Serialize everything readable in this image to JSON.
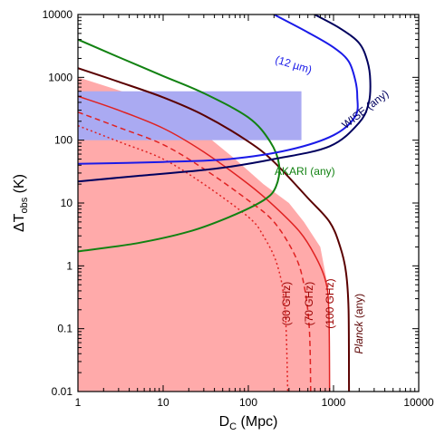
{
  "chart_data": {
    "type": "line",
    "xlabel": {
      "main": "D",
      "sub": "C",
      "rest": " (Mpc)"
    },
    "ylabel": {
      "main": "ΔT",
      "sub": "obs",
      "rest": " (K)"
    },
    "xscale": "log",
    "yscale": "log",
    "xlim": [
      1,
      10000
    ],
    "ylim": [
      0.01,
      10000
    ],
    "x_ticks": [
      {
        "value": 1,
        "label": "1"
      },
      {
        "value": 10,
        "label": "10"
      },
      {
        "value": 100,
        "label": "100"
      },
      {
        "value": 1000,
        "label": "1000"
      },
      {
        "value": 10000,
        "label": "10000"
      }
    ],
    "y_ticks": [
      {
        "value": 0.01,
        "label": "0.01"
      },
      {
        "value": 0.1,
        "label": "0.1"
      },
      {
        "value": 1,
        "label": "1"
      },
      {
        "value": 10,
        "label": "10"
      },
      {
        "value": 100,
        "label": "100"
      },
      {
        "value": 1000,
        "label": "1000"
      },
      {
        "value": 10000,
        "label": "10000"
      }
    ],
    "shaded_regions": [
      {
        "color": "#ffaaaa",
        "points": [
          [
            1,
            1000
          ],
          [
            1,
            0.01
          ],
          [
            900,
            0.01
          ],
          [
            890,
            0.1
          ],
          [
            850,
            0.5
          ],
          [
            700,
            2
          ],
          [
            450,
            5
          ],
          [
            300,
            10
          ],
          [
            150,
            20
          ],
          [
            70,
            50
          ],
          [
            20,
            200
          ],
          [
            10,
            300
          ],
          [
            5,
            500
          ]
        ]
      },
      {
        "color": "#aaaaf2",
        "band": {
          "x": [
            1,
            420
          ],
          "y": [
            100,
            600
          ]
        }
      }
    ],
    "series": [
      {
        "color": "#5a0000",
        "width": 2,
        "dash": "",
        "points": [
          [
            1,
            1400
          ],
          [
            3,
            850
          ],
          [
            10,
            480
          ],
          [
            30,
            250
          ],
          [
            100,
            95
          ],
          [
            200,
            45
          ],
          [
            500,
            12
          ],
          [
            900,
            5
          ],
          [
            1200,
            2
          ],
          [
            1400,
            0.8
          ],
          [
            1500,
            0.2
          ],
          [
            1520,
            0.01
          ]
        ]
      },
      {
        "color": "#e02222",
        "width": 1.5,
        "dash": "",
        "points": [
          [
            1,
            500
          ],
          [
            3,
            300
          ],
          [
            10,
            155
          ],
          [
            30,
            65
          ],
          [
            100,
            20
          ],
          [
            200,
            9
          ],
          [
            400,
            3.5
          ],
          [
            600,
            1.5
          ],
          [
            800,
            0.6
          ],
          [
            880,
            0.2
          ],
          [
            900,
            0.01
          ]
        ]
      },
      {
        "color": "#e02222",
        "width": 1.5,
        "dash": "6,4",
        "points": [
          [
            1,
            280
          ],
          [
            3,
            160
          ],
          [
            10,
            85
          ],
          [
            30,
            35
          ],
          [
            100,
            11
          ],
          [
            200,
            5
          ],
          [
            350,
            1.5
          ],
          [
            450,
            0.5
          ],
          [
            520,
            0.1
          ],
          [
            540,
            0.01
          ]
        ]
      },
      {
        "color": "#e02222",
        "width": 1.5,
        "dash": "2,3",
        "points": [
          [
            1,
            170
          ],
          [
            3,
            95
          ],
          [
            10,
            50
          ],
          [
            30,
            20
          ],
          [
            100,
            6
          ],
          [
            150,
            3
          ],
          [
            220,
            1
          ],
          [
            270,
            0.2
          ],
          [
            290,
            0.01
          ]
        ]
      },
      {
        "color": "#128212",
        "width": 2,
        "dash": "",
        "points": [
          [
            1,
            4000
          ],
          [
            3,
            2100
          ],
          [
            10,
            1050
          ],
          [
            30,
            560
          ],
          [
            100,
            230
          ],
          [
            180,
            95
          ],
          [
            230,
            40
          ],
          [
            210,
            18
          ],
          [
            150,
            11
          ],
          [
            60,
            6
          ],
          [
            20,
            3.5
          ],
          [
            5,
            2.3
          ],
          [
            1,
            1.7
          ]
        ]
      },
      {
        "color": "#1a1ae8",
        "width": 2,
        "dash": "",
        "points": [
          [
            200,
            10000
          ],
          [
            500,
            5200
          ],
          [
            1000,
            3000
          ],
          [
            1500,
            1800
          ],
          [
            1800,
            900
          ],
          [
            1900,
            500
          ],
          [
            1800,
            240
          ],
          [
            1000,
            120
          ],
          [
            300,
            70
          ],
          [
            60,
            50
          ],
          [
            10,
            45
          ],
          [
            1,
            42
          ]
        ]
      },
      {
        "color": "#00005e",
        "width": 2,
        "dash": "",
        "points": [
          [
            600,
            10000
          ],
          [
            1200,
            6000
          ],
          [
            2000,
            3500
          ],
          [
            2500,
            1800
          ],
          [
            2700,
            900
          ],
          [
            2600,
            400
          ],
          [
            2000,
            190
          ],
          [
            900,
            80
          ],
          [
            200,
            50
          ],
          [
            40,
            35
          ],
          [
            5,
            27
          ],
          [
            1,
            22
          ]
        ]
      }
    ],
    "annotations": [
      {
        "text": "(12 µm)",
        "x": 330,
        "y": 1400,
        "rotate": 17,
        "color": "#1a1ae8"
      },
      {
        "text": "WISE (any)",
        "x": 2500,
        "y": 280,
        "rotate": -38,
        "color": "#00005e"
      },
      {
        "text": "AKARI (any)",
        "x": 460,
        "y": 28,
        "rotate": 0,
        "color": "#128212"
      },
      {
        "text": "(30 GHz)",
        "x": 310,
        "y": 0.25,
        "rotate": -90,
        "color": "#9b0000"
      },
      {
        "text": "(70 GHz)",
        "x": 570,
        "y": 0.25,
        "rotate": -90,
        "color": "#9b0000"
      },
      {
        "text": "(100 GHz)",
        "x": 1000,
        "y": 0.25,
        "rotate": -90,
        "color": "#9b0000"
      },
      {
        "text": "Planck (any)",
        "x": 2200,
        "y": 0.12,
        "rotate": -90,
        "color": "#5a0000",
        "italic_prefix": "Planck",
        "rest": " (any)"
      }
    ]
  }
}
